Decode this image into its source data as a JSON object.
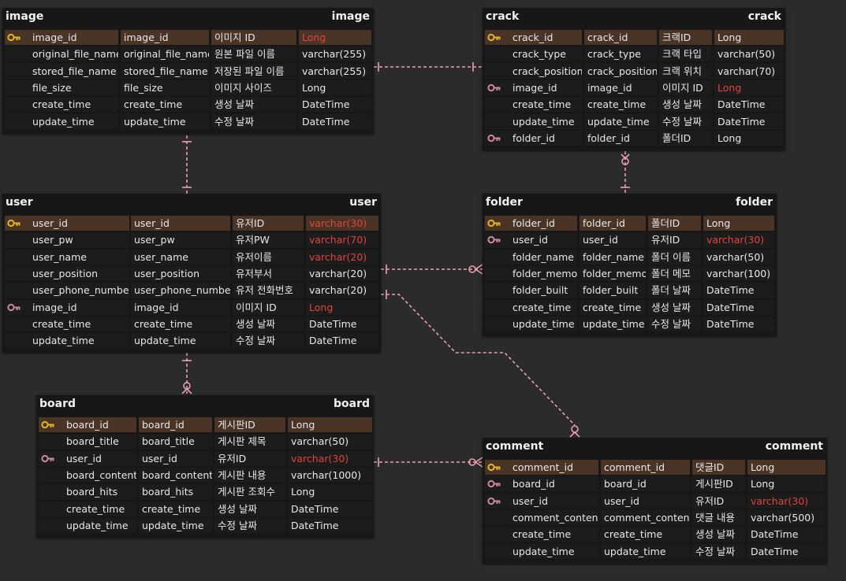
{
  "colors": {
    "background": "#2b2b2b",
    "relation_line": "#e8a0b0",
    "pk_row": "#4a3426",
    "red_type": "#e0443e",
    "pk_icon": "#e2b529",
    "fk_icon": "#c98a9a"
  },
  "entities": [
    {
      "id": "image",
      "title_left": "image",
      "title_right": "image",
      "rows": [
        {
          "key": "pk",
          "logical": "image_id",
          "physical": "image_id",
          "comment": "이미지 ID",
          "type": "Long",
          "red": true
        },
        {
          "key": "",
          "logical": "original_file_name",
          "physical": "original_file_name",
          "comment": "원본 파일 이름",
          "type": "varchar(255)",
          "red": false
        },
        {
          "key": "",
          "logical": "stored_file_name",
          "physical": "stored_file_name",
          "comment": "저장된 파일 이름",
          "type": "varchar(255)",
          "red": false
        },
        {
          "key": "",
          "logical": "file_size",
          "physical": "file_size",
          "comment": "이미지 사이즈",
          "type": "Long",
          "red": false
        },
        {
          "key": "",
          "logical": "create_time",
          "physical": "create_time",
          "comment": "생성 날짜",
          "type": "DateTime",
          "red": false
        },
        {
          "key": "",
          "logical": "update_time",
          "physical": "update_time",
          "comment": "수정 날짜",
          "type": "DateTime",
          "red": false
        }
      ]
    },
    {
      "id": "crack",
      "title_left": "crack",
      "title_right": "crack",
      "rows": [
        {
          "key": "pk",
          "logical": "crack_id",
          "physical": "crack_id",
          "comment": "크랙ID",
          "type": "Long",
          "red": false
        },
        {
          "key": "",
          "logical": "crack_type",
          "physical": "crack_type",
          "comment": "크랙 타입",
          "type": "varchar(50)",
          "red": false
        },
        {
          "key": "",
          "logical": "crack_position",
          "physical": "crack_position",
          "comment": "크랙 위치",
          "type": "varchar(70)",
          "red": false
        },
        {
          "key": "fk",
          "logical": "image_id",
          "physical": "image_id",
          "comment": "이미지 ID",
          "type": "Long",
          "red": true
        },
        {
          "key": "",
          "logical": "create_time",
          "physical": "create_time",
          "comment": "생성 날짜",
          "type": "DateTime",
          "red": false
        },
        {
          "key": "",
          "logical": "update_time",
          "physical": "update_time",
          "comment": "수정 날짜",
          "type": "DateTime",
          "red": false
        },
        {
          "key": "fk",
          "logical": "folder_id",
          "physical": "folder_id",
          "comment": "폴더ID",
          "type": "Long",
          "red": false
        }
      ]
    },
    {
      "id": "user",
      "title_left": "user",
      "title_right": "user",
      "rows": [
        {
          "key": "pk",
          "logical": "user_id",
          "physical": "user_id",
          "comment": "유저ID",
          "type": "varchar(30)",
          "red": true
        },
        {
          "key": "",
          "logical": "user_pw",
          "physical": "user_pw",
          "comment": "유저PW",
          "type": "varchar(70)",
          "red": true
        },
        {
          "key": "",
          "logical": "user_name",
          "physical": "user_name",
          "comment": "유저이름",
          "type": "varchar(20)",
          "red": true
        },
        {
          "key": "",
          "logical": "user_position",
          "physical": "user_position",
          "comment": "유저부서",
          "type": "varchar(20)",
          "red": false
        },
        {
          "key": "",
          "logical": "user_phone_number",
          "physical": "user_phone_number",
          "comment": "유저 전화번호",
          "type": "varchar(20)",
          "red": false
        },
        {
          "key": "fk",
          "logical": "image_id",
          "physical": "image_id",
          "comment": "이미지 ID",
          "type": "Long",
          "red": true
        },
        {
          "key": "",
          "logical": "create_time",
          "physical": "create_time",
          "comment": "생성 날짜",
          "type": "DateTime",
          "red": false
        },
        {
          "key": "",
          "logical": "update_time",
          "physical": "update_time",
          "comment": "수정 날짜",
          "type": "DateTime",
          "red": false
        }
      ]
    },
    {
      "id": "folder",
      "title_left": "folder",
      "title_right": "folder",
      "rows": [
        {
          "key": "pk",
          "logical": "folder_id",
          "physical": "folder_id",
          "comment": "폴더ID",
          "type": "Long",
          "red": false
        },
        {
          "key": "fk",
          "logical": "user_id",
          "physical": "user_id",
          "comment": "유저ID",
          "type": "varchar(30)",
          "red": true
        },
        {
          "key": "",
          "logical": "folder_name",
          "physical": "folder_name",
          "comment": "폴더 이름",
          "type": "varchar(50)",
          "red": false
        },
        {
          "key": "",
          "logical": "folder_memo",
          "physical": "folder_memo",
          "comment": "폴더 메모",
          "type": "varchar(100)",
          "red": false
        },
        {
          "key": "",
          "logical": "folder_built",
          "physical": "folder_built",
          "comment": "폴더 날짜",
          "type": "DateTime",
          "red": false
        },
        {
          "key": "",
          "logical": "create_time",
          "physical": "create_time",
          "comment": "생성 날짜",
          "type": "DateTime",
          "red": false
        },
        {
          "key": "",
          "logical": "update_time",
          "physical": "update_time",
          "comment": "수정 날짜",
          "type": "DateTime",
          "red": false
        }
      ]
    },
    {
      "id": "board",
      "title_left": "board",
      "title_right": "board",
      "rows": [
        {
          "key": "pk",
          "logical": "board_id",
          "physical": "board_id",
          "comment": "게시판ID",
          "type": "Long",
          "red": false
        },
        {
          "key": "",
          "logical": "board_title",
          "physical": "board_title",
          "comment": "게시판 제목",
          "type": "varchar(50)",
          "red": false
        },
        {
          "key": "fk",
          "logical": "user_id",
          "physical": "user_id",
          "comment": "유저ID",
          "type": "varchar(30)",
          "red": true
        },
        {
          "key": "",
          "logical": "board_content",
          "physical": "board_content",
          "comment": "게시판 내용",
          "type": "varchar(1000)",
          "red": false
        },
        {
          "key": "",
          "logical": "board_hits",
          "physical": "board_hits",
          "comment": "게시판 조회수",
          "type": "Long",
          "red": false
        },
        {
          "key": "",
          "logical": "create_time",
          "physical": "create_time",
          "comment": "생성 날짜",
          "type": "DateTime",
          "red": false
        },
        {
          "key": "",
          "logical": "update_time",
          "physical": "update_time",
          "comment": "수정 날짜",
          "type": "DateTime",
          "red": false
        }
      ]
    },
    {
      "id": "comment",
      "title_left": "comment",
      "title_right": "comment",
      "rows": [
        {
          "key": "pk",
          "logical": "comment_id",
          "physical": "comment_id",
          "comment": "댓글ID",
          "type": "Long",
          "red": false
        },
        {
          "key": "fk",
          "logical": "board_id",
          "physical": "board_id",
          "comment": "게시판ID",
          "type": "Long",
          "red": false
        },
        {
          "key": "fk",
          "logical": "user_id",
          "physical": "user_id",
          "comment": "유저ID",
          "type": "varchar(30)",
          "red": true
        },
        {
          "key": "",
          "logical": "comment_content",
          "physical": "comment_content",
          "comment": "댓글 내용",
          "type": "varchar(500)",
          "red": false
        },
        {
          "key": "",
          "logical": "create_time",
          "physical": "create_time",
          "comment": "생성 날짜",
          "type": "DateTime",
          "red": false
        },
        {
          "key": "",
          "logical": "update_time",
          "physical": "update_time",
          "comment": "수정 날짜",
          "type": "DateTime",
          "red": false
        }
      ]
    }
  ],
  "relationships": [
    {
      "from": "image",
      "to": "crack",
      "cardinality": "one-to-one"
    },
    {
      "from": "image",
      "to": "user",
      "cardinality": "one-to-one"
    },
    {
      "from": "folder",
      "to": "crack",
      "cardinality": "one-to-many"
    },
    {
      "from": "user",
      "to": "folder",
      "cardinality": "one-to-many"
    },
    {
      "from": "user",
      "to": "board",
      "cardinality": "one-to-many"
    },
    {
      "from": "user",
      "to": "comment",
      "cardinality": "one-to-many"
    },
    {
      "from": "board",
      "to": "comment",
      "cardinality": "one-to-many"
    }
  ]
}
